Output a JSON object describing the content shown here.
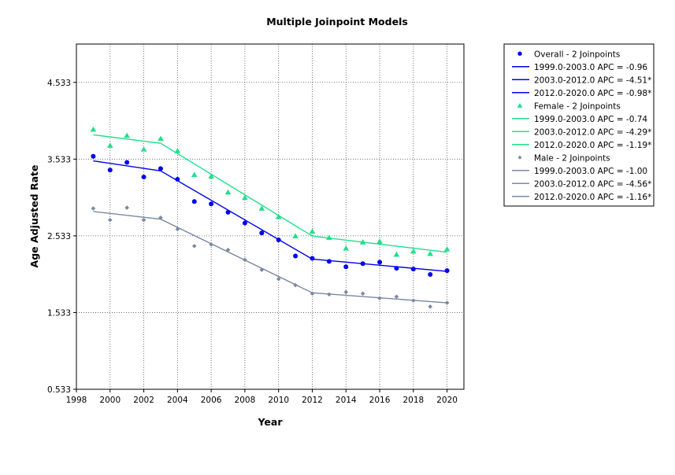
{
  "chart_data": {
    "type": "scatter",
    "title": "Multiple Joinpoint Models",
    "xlabel": "Year",
    "ylabel": "Age Adjusted Rate",
    "xlim": [
      1998,
      2021
    ],
    "ylim": [
      0.533,
      5.033
    ],
    "x_ticks": [
      1998,
      2000,
      2002,
      2004,
      2006,
      2008,
      2010,
      2012,
      2014,
      2016,
      2018,
      2020
    ],
    "y_ticks": [
      0.533,
      1.533,
      2.533,
      3.533,
      4.533
    ],
    "y_tick_labels": [
      "0.533",
      "1.533",
      "2.533",
      "3.533",
      "4.533"
    ],
    "grid": true,
    "legend_position": "outside-right",
    "x": [
      1999,
      2000,
      2001,
      2002,
      2003,
      2004,
      2005,
      2006,
      2007,
      2008,
      2009,
      2010,
      2011,
      2012,
      2013,
      2014,
      2015,
      2016,
      2017,
      2018,
      2019,
      2020
    ],
    "series": [
      {
        "name": "Overall - 2 Joinpoints",
        "color": "#0000ee",
        "marker": "circle",
        "observed": [
          3.57,
          3.39,
          3.49,
          3.3,
          3.41,
          3.27,
          2.98,
          2.95,
          2.84,
          2.7,
          2.57,
          2.48,
          2.27,
          2.24,
          2.2,
          2.13,
          2.17,
          2.19,
          2.11,
          2.1,
          2.03,
          2.08
        ],
        "fitted_points": [
          [
            1999,
            3.51
          ],
          [
            2003,
            3.38
          ],
          [
            2012,
            2.23
          ],
          [
            2020,
            2.07
          ]
        ],
        "segments": [
          {
            "label": "1999.0-2003.0 APC  =  -0.96"
          },
          {
            "label": "2003.0-2012.0 APC  =  -4.51*"
          },
          {
            "label": "2012.0-2020.0 APC  =  -0.98*"
          }
        ]
      },
      {
        "name": "Female - 2 Joinpoints",
        "color": "#1fe08a",
        "marker": "triangle",
        "observed": [
          3.92,
          3.71,
          3.84,
          3.66,
          3.8,
          3.64,
          3.33,
          3.31,
          3.1,
          3.03,
          2.89,
          2.78,
          2.53,
          2.59,
          2.51,
          2.37,
          2.45,
          2.46,
          2.29,
          2.33,
          2.3,
          2.36
        ],
        "fitted_points": [
          [
            1999,
            3.85
          ],
          [
            2003,
            3.74
          ],
          [
            2012,
            2.53
          ],
          [
            2020,
            2.32
          ]
        ],
        "segments": [
          {
            "label": "1999.0-2003.0 APC  =  -0.74"
          },
          {
            "label": "2003.0-2012.0 APC  =  -4.29*"
          },
          {
            "label": "2012.0-2020.0 APC  =  -1.19*"
          }
        ]
      },
      {
        "name": "Male - 2 Joinpoints",
        "color": "#7a8aa3",
        "marker": "diamond",
        "observed": [
          2.89,
          2.74,
          2.9,
          2.74,
          2.77,
          2.62,
          2.4,
          2.42,
          2.35,
          2.22,
          2.09,
          1.97,
          1.89,
          1.78,
          1.77,
          1.8,
          1.78,
          1.72,
          1.74,
          1.69,
          1.61,
          1.66
        ],
        "fitted_points": [
          [
            1999,
            2.85
          ],
          [
            2003,
            2.75
          ],
          [
            2012,
            1.79
          ],
          [
            2020,
            1.66
          ]
        ],
        "segments": [
          {
            "label": "1999.0-2003.0 APC  =  -1.00"
          },
          {
            "label": "2003.0-2012.0 APC  =  -4.56*"
          },
          {
            "label": "2012.0-2020.0 APC  =  -1.16*"
          }
        ]
      }
    ]
  }
}
